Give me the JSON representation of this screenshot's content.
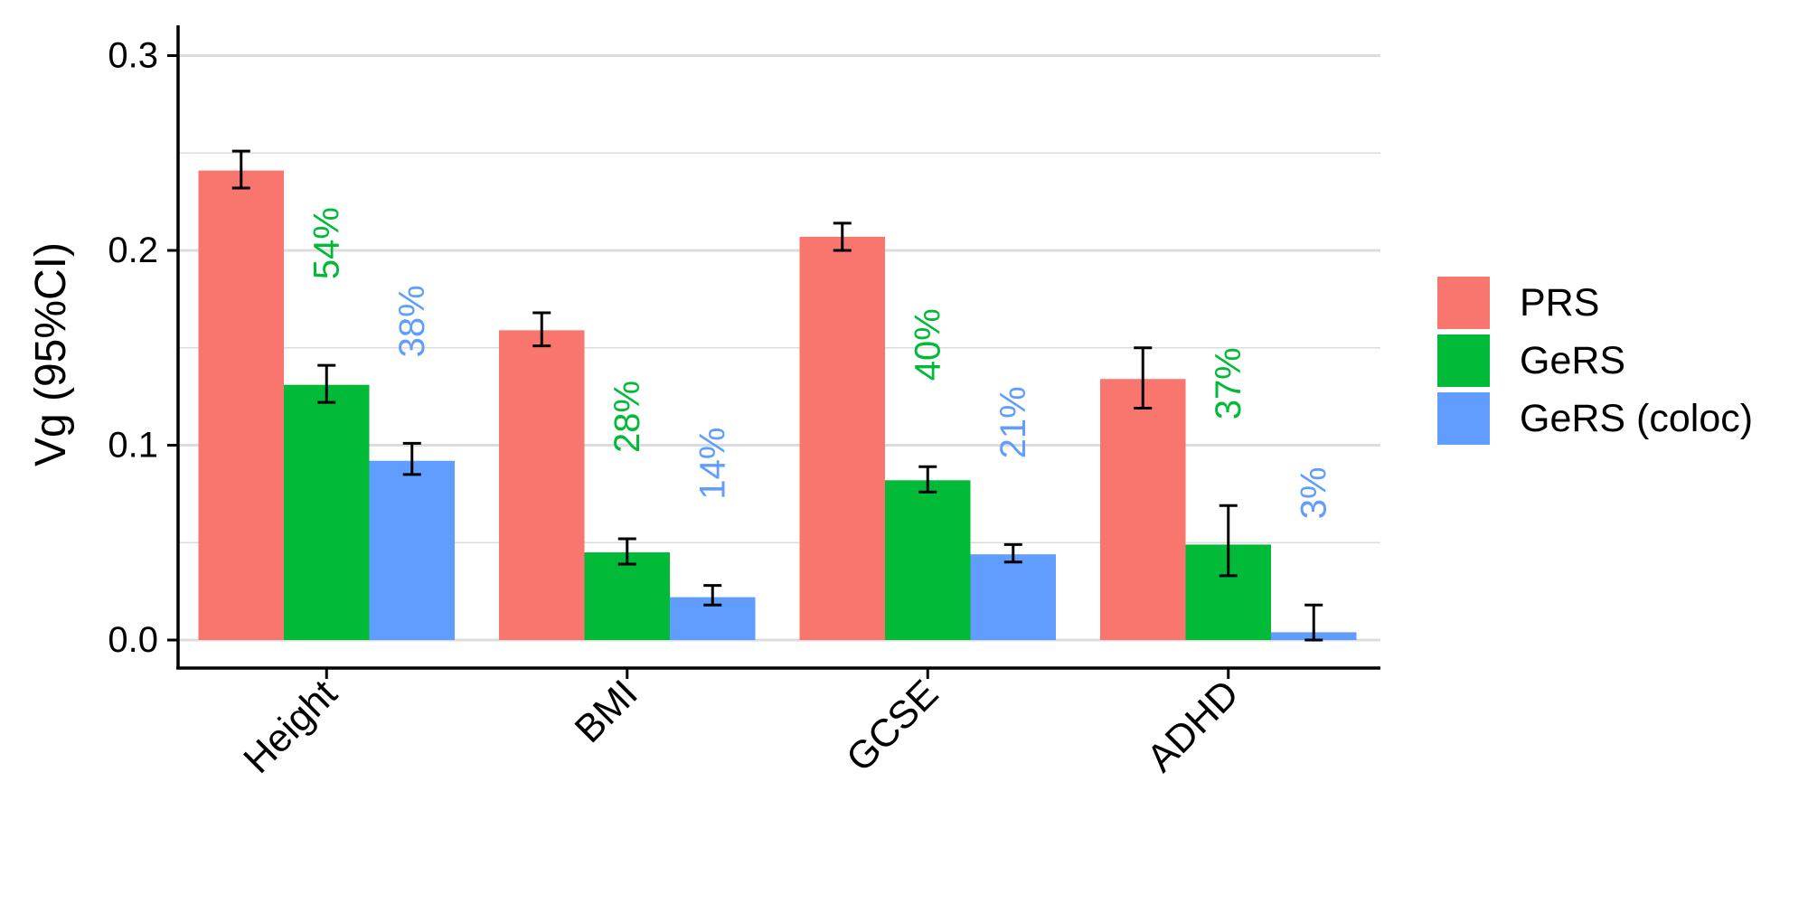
{
  "chart_data": {
    "type": "bar",
    "title": "",
    "xlabel": "",
    "ylabel": "Vg (95%CI)",
    "ylim": [
      0,
      0.32
    ],
    "yticks": [
      0.0,
      0.1,
      0.2,
      0.3
    ],
    "ytick_labels": [
      "0.0",
      "0.1",
      "0.2",
      "0.3"
    ],
    "grid": "horizontal",
    "legend_position": "right",
    "categories": [
      "Height",
      "BMI",
      "GCSE",
      "ADHD"
    ],
    "series": [
      {
        "name": "PRS",
        "color": "#F8766D",
        "values": [
          0.241,
          0.159,
          0.207,
          0.134
        ],
        "ci_low": [
          0.232,
          0.151,
          0.2,
          0.119
        ],
        "ci_high": [
          0.251,
          0.168,
          0.214,
          0.15
        ],
        "annotations": [
          "",
          "",
          "",
          ""
        ]
      },
      {
        "name": "GeRS",
        "color": "#00BA38",
        "values": [
          0.131,
          0.045,
          0.082,
          0.049
        ],
        "ci_low": [
          0.122,
          0.039,
          0.076,
          0.033
        ],
        "ci_high": [
          0.141,
          0.052,
          0.089,
          0.069
        ],
        "annotations": [
          "54%",
          "28%",
          "40%",
          "37%"
        ]
      },
      {
        "name": "GeRS (coloc)",
        "color": "#619CFF",
        "values": [
          0.092,
          0.022,
          0.044,
          0.004
        ],
        "ci_low": [
          0.085,
          0.018,
          0.04,
          0.0
        ],
        "ci_high": [
          0.101,
          0.028,
          0.049,
          0.018
        ],
        "annotations": [
          "38%",
          "14%",
          "21%",
          "3%"
        ]
      }
    ]
  }
}
